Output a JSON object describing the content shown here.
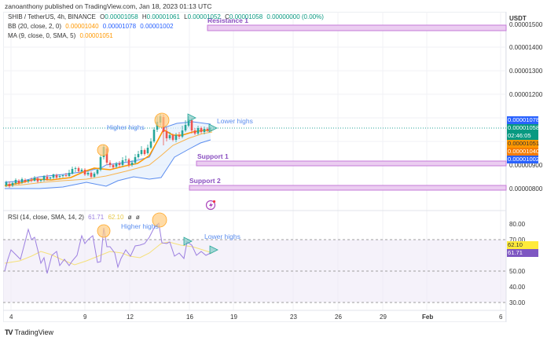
{
  "publisher": "zanoanthony published on TradingView.com, Jan 18, 2023 01:13 UTC",
  "symbol_line": {
    "symbol": "SHIB / TetherUS, 4h, BINANCE",
    "open_label": "O",
    "open": "0.00001058",
    "high_label": "H",
    "high": "0.00001061",
    "low_label": "L",
    "low": "0.00001052",
    "close_label": "C",
    "close": "0.00001058",
    "change": "0.00000000 (0.00%)"
  },
  "indicators": {
    "bb": {
      "label": "BB (20, close, 2, 0)",
      "basis": "0.00001040",
      "upper": "0.00001078",
      "lower": "0.00001002"
    },
    "ma": {
      "label": "MA (9, close, 0, SMA, 5)",
      "value": "0.00001051"
    },
    "rsi": {
      "label": "RSI (14, close, SMA, 14, 2)",
      "rsi": "61.71",
      "sma": "62.10",
      "extra1": "ø",
      "extra2": "ø"
    }
  },
  "price_axis": {
    "currency": "USDT",
    "ticks": [
      "0.00001500",
      "0.00001400",
      "0.00001300",
      "0.00001200",
      "0.00000900",
      "0.00000800"
    ]
  },
  "price_tags": [
    {
      "value": "0.00001078",
      "color": "#2962ff"
    },
    {
      "value": "0.00001058",
      "sub": "02:46:05",
      "color": "#089981"
    },
    {
      "value": "0.00001051",
      "color": "#ff9800"
    },
    {
      "value": "0.00001040",
      "color": "#f57c00"
    },
    {
      "value": "0.00001002",
      "color": "#2962ff"
    }
  ],
  "rsi_axis": {
    "ticks": [
      "80.00",
      "70.00",
      "50.00",
      "40.00",
      "30.00"
    ]
  },
  "rsi_tags": [
    {
      "value": "62.10",
      "color": "#ffeb3b",
      "text_color": "#333"
    },
    {
      "value": "61.71",
      "color": "#7e57c2",
      "text_color": "#fff"
    }
  ],
  "time_axis": {
    "ticks": [
      "4",
      "9",
      "12",
      "16",
      "19",
      "23",
      "26",
      "29",
      "Feb",
      "6"
    ]
  },
  "annotations": {
    "resistance": "Resistance 1",
    "support1": "Support 1",
    "support2": "Support 2",
    "higher_highs": "Higher highs",
    "lower_highs": "Lower highs",
    "rsi_higher_highs": "Higher highs",
    "rsi_lower_highs": "Lower highs"
  },
  "footer": {
    "logo": "TV",
    "brand": "TradingView"
  },
  "colors": {
    "up": "#26a69a",
    "down": "#ef5350",
    "bb": "#5b8def",
    "ma": "#ff9800",
    "rsi": "#9c7fe0",
    "rsi_ma": "#f5e07a",
    "zone": "#e8c9ef",
    "zone_border": "#c47ad8",
    "annot_text": "#5b8def",
    "zone_text": "#8a4fc0"
  },
  "chart_data": [
    {
      "type": "candlestick",
      "title": "SHIB / TetherUS, 4h, BINANCE",
      "xlabel": "",
      "ylabel": "USDT",
      "x_ticks": [
        "4",
        "9",
        "12",
        "16",
        "19",
        "23",
        "26",
        "29",
        "Feb",
        "6"
      ],
      "y_ticks": [
        1.5e-05,
        1.4e-05,
        1.3e-05,
        1.2e-05,
        9e-06,
        8e-06
      ],
      "ylim": [
        7.5e-06,
        1.55e-05
      ],
      "last_ohlc": {
        "open": 1.058e-05,
        "high": 1.061e-05,
        "low": 1.052e-05,
        "close": 1.058e-05
      },
      "approx_close_path": [
        {
          "x": "4",
          "y": 8.1e-06
        },
        {
          "x": "6",
          "y": 8.3e-06
        },
        {
          "x": "9",
          "y": 8.6e-06
        },
        {
          "x": "10",
          "y": 9.7e-06
        },
        {
          "x": "11",
          "y": 9.2e-06
        },
        {
          "x": "13",
          "y": 9.9e-06
        },
        {
          "x": "14",
          "y": 1.07e-05
        },
        {
          "x": "15",
          "y": 1.01e-05
        },
        {
          "x": "16",
          "y": 1.06e-05
        },
        {
          "x": "17",
          "y": 1.058e-05
        }
      ],
      "series": [
        {
          "name": "BB upper",
          "last": 1.078e-05
        },
        {
          "name": "BB basis",
          "last": 1.04e-05
        },
        {
          "name": "BB lower",
          "last": 1.002e-05
        },
        {
          "name": "MA 9",
          "last": 1.051e-05
        }
      ],
      "levels": [
        {
          "name": "Resistance 1",
          "value": 1.5e-05
        },
        {
          "name": "Support 1",
          "value": 9e-06
        },
        {
          "name": "Support 2",
          "value": 8e-06
        }
      ],
      "annotations": [
        "Higher highs",
        "Lower highs"
      ],
      "grid": true
    },
    {
      "type": "line",
      "title": "RSI (14, close, SMA, 14, 2)",
      "y_ticks": [
        80,
        70,
        50,
        40,
        30
      ],
      "ylim": [
        28,
        88
      ],
      "bands": {
        "upper": 70,
        "middle": 50,
        "lower": 30
      },
      "series": [
        {
          "name": "RSI",
          "last": 61.71
        },
        {
          "name": "RSI SMA",
          "last": 62.1
        }
      ],
      "annotations": [
        "Higher highs",
        "Lower highs"
      ]
    }
  ]
}
